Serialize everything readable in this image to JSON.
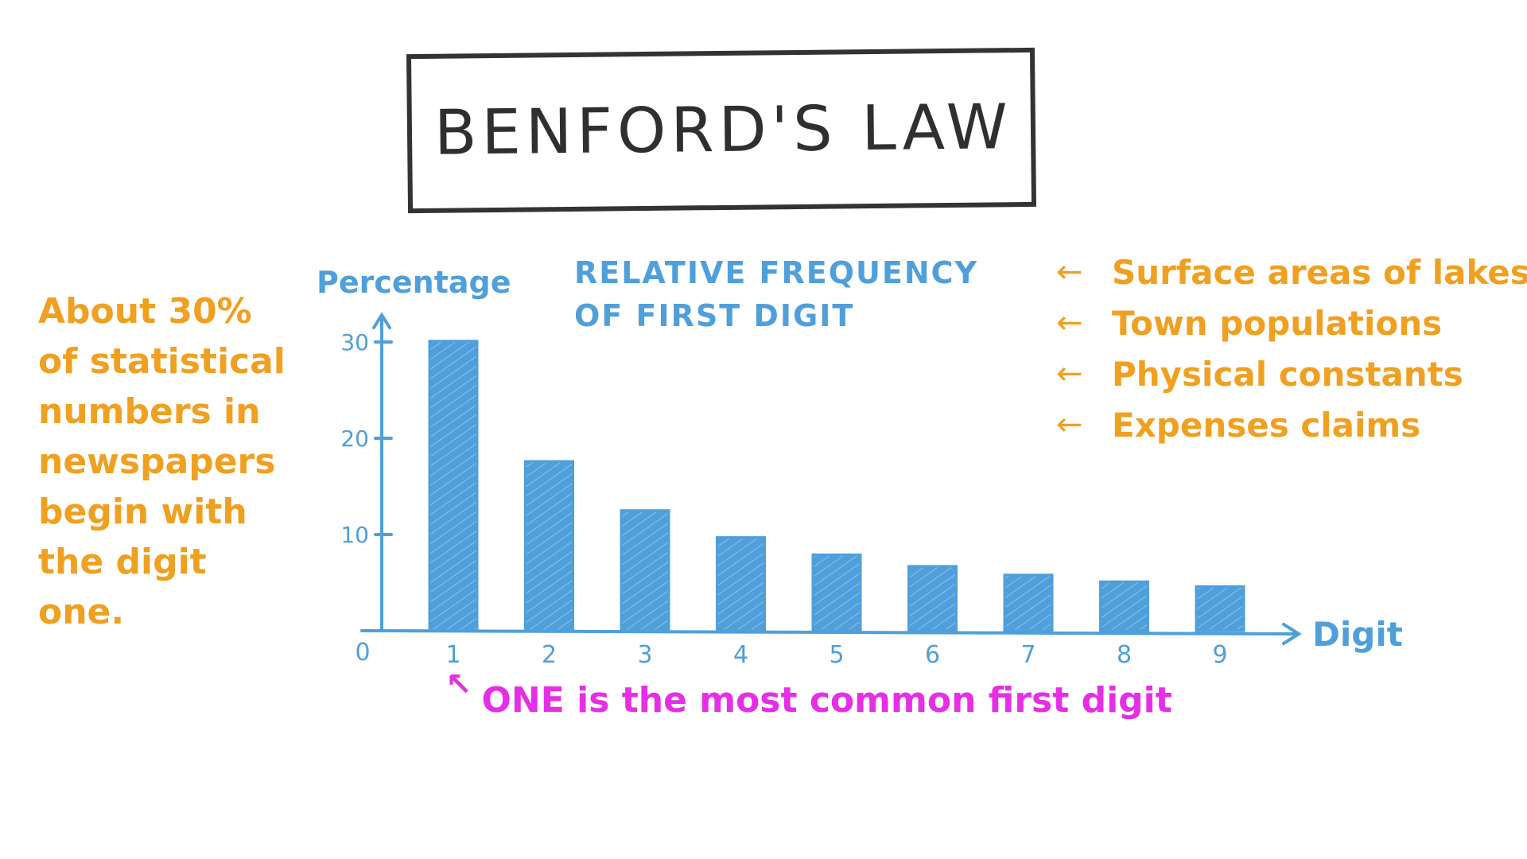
{
  "title": "BENFORD'S LAW",
  "left_note": {
    "lines": [
      "About 30%",
      "of statistical",
      "numbers in",
      "newspapers",
      "begin with",
      "the digit",
      "one."
    ]
  },
  "right_list": {
    "items": [
      "Surface areas of lakes",
      "Town populations",
      "Physical constants",
      "Expenses claims"
    ]
  },
  "bottom_note": "ONE is the most common first digit",
  "colors": {
    "ink": "#2f2f2f",
    "blue": "#4f9fdb",
    "orange": "#f0a020",
    "magenta": "#e62ee6"
  },
  "chart_data": {
    "type": "bar",
    "title_lines": [
      "RELATIVE FREQUENCY",
      "OF FIRST DIGIT"
    ],
    "xlabel": "Digit",
    "ylabel": "Percentage",
    "categories": [
      "1",
      "2",
      "3",
      "4",
      "5",
      "6",
      "7",
      "8",
      "9"
    ],
    "values": [
      30.1,
      17.6,
      12.5,
      9.7,
      7.9,
      6.7,
      5.8,
      5.1,
      4.6
    ],
    "yticks": [
      10,
      20,
      30
    ],
    "origin_label": "0",
    "ylim": [
      0,
      33
    ],
    "grid": false,
    "legend": "none"
  }
}
